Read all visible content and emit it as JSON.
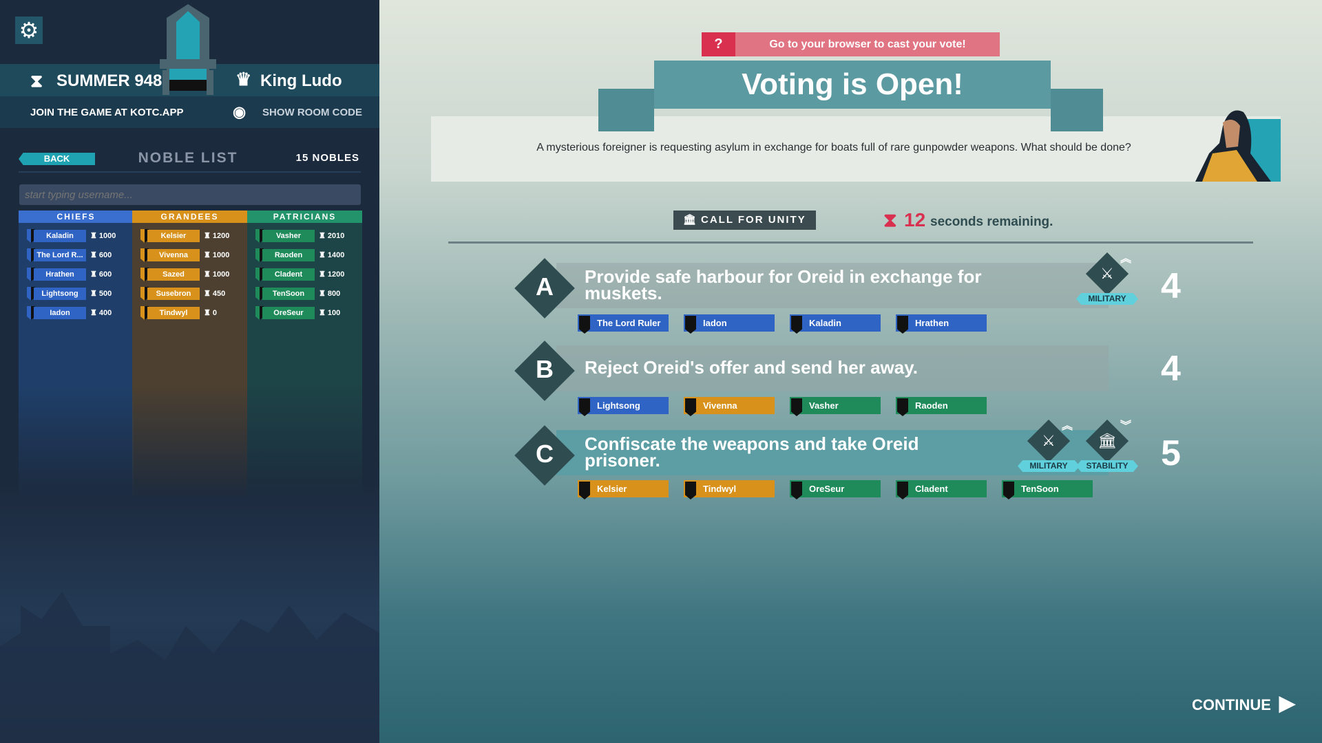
{
  "header": {
    "season": "SUMMER 948",
    "king": "King Ludo",
    "join_text": "JOIN THE GAME AT KOTC.APP",
    "show_room_code": "SHOW ROOM CODE"
  },
  "noble_list": {
    "back_label": "BACK",
    "title": "NOBLE LIST",
    "count": "15 NOBLES",
    "search_placeholder": "start typing username...",
    "columns": [
      {
        "title": "CHIEFS",
        "color": "#3a6fd0",
        "body": "#1f3f6a",
        "badge": "#2f63c4",
        "nobles": [
          {
            "name": "Kaladin",
            "points": "1000"
          },
          {
            "name": "The Lord R...",
            "points": "600"
          },
          {
            "name": "Hrathen",
            "points": "600"
          },
          {
            "name": "Lightsong",
            "points": "500"
          },
          {
            "name": "Iadon",
            "points": "400"
          }
        ]
      },
      {
        "title": "GRANDEES",
        "color": "#d8921c",
        "body": "#4d4030",
        "badge": "#d8921c",
        "nobles": [
          {
            "name": "Kelsier",
            "points": "1200"
          },
          {
            "name": "Vivenna",
            "points": "1000"
          },
          {
            "name": "Sazed",
            "points": "1000"
          },
          {
            "name": "Susebron",
            "points": "450"
          },
          {
            "name": "Tindwyl",
            "points": "0"
          }
        ]
      },
      {
        "title": "PATRICIANS",
        "color": "#22936a",
        "body": "#1d4447",
        "badge": "#1f8a5a",
        "nobles": [
          {
            "name": "Vasher",
            "points": "2010"
          },
          {
            "name": "Raoden",
            "points": "1400"
          },
          {
            "name": "Cladent",
            "points": "1200"
          },
          {
            "name": "TenSoon",
            "points": "800"
          },
          {
            "name": "OreSeur",
            "points": "100"
          }
        ]
      }
    ]
  },
  "vote": {
    "prompt": "Go to your browser to cast your vote!",
    "prompt_icon": "?",
    "title": "Voting is Open!",
    "question": "A mysterious foreigner is requesting asylum in exchange for boats full of rare gunpowder weapons. What should be done?",
    "call_for_unity": "CALL FOR UNITY",
    "timer_value": "12",
    "timer_text": "seconds remaining.",
    "options": [
      {
        "letter": "A",
        "text": "Provide safe harbour for Oreid in exchange for muskets.",
        "votes": "4",
        "highlighted": false,
        "stats": [
          {
            "label": "MILITARY",
            "icon": "swords-icon",
            "direction": "up"
          }
        ],
        "voters": [
          {
            "name": "The Lord Ruler",
            "faction": "chiefs"
          },
          {
            "name": "Iadon",
            "faction": "chiefs"
          },
          {
            "name": "Kaladin",
            "faction": "chiefs"
          },
          {
            "name": "Hrathen",
            "faction": "chiefs"
          }
        ]
      },
      {
        "letter": "B",
        "text": "Reject Oreid's offer and send her away.",
        "votes": "4",
        "highlighted": false,
        "stats": [],
        "voters": [
          {
            "name": "Lightsong",
            "faction": "chiefs"
          },
          {
            "name": "Vivenna",
            "faction": "grandees"
          },
          {
            "name": "Vasher",
            "faction": "patricians"
          },
          {
            "name": "Raoden",
            "faction": "patricians"
          }
        ]
      },
      {
        "letter": "C",
        "text": "Confiscate the weapons and take Oreid prisoner.",
        "votes": "5",
        "highlighted": true,
        "stats": [
          {
            "label": "MILITARY",
            "icon": "swords-icon",
            "direction": "up"
          },
          {
            "label": "STABILITY",
            "icon": "pillar-icon",
            "direction": "down"
          }
        ],
        "voters": [
          {
            "name": "Kelsier",
            "faction": "grandees"
          },
          {
            "name": "Tindwyl",
            "faction": "grandees"
          },
          {
            "name": "OreSeur",
            "faction": "patricians"
          },
          {
            "name": "Cladent",
            "faction": "patricians"
          },
          {
            "name": "TenSoon",
            "faction": "patricians"
          }
        ]
      }
    ],
    "continue_label": "CONTINUE"
  },
  "colors": {
    "chiefs": "#2f63c4",
    "grandees": "#d8921c",
    "patricians": "#1f8a5a",
    "accent": "#5fd0dc",
    "timer": "#d9304f"
  }
}
